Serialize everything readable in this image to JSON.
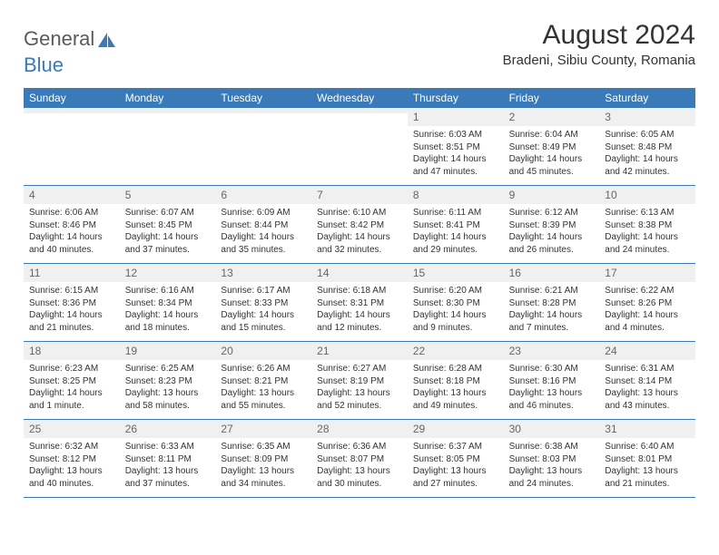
{
  "logo": {
    "general": "General",
    "blue": "Blue"
  },
  "colors": {
    "header_bg": "#3a7ab8",
    "header_text": "#ffffff",
    "daynum_bg": "#f0f0f0",
    "daynum_text": "#666666",
    "body_text": "#333333",
    "rule": "#3a7ab8",
    "page_bg": "#ffffff"
  },
  "title": "August 2024",
  "location": "Bradeni, Sibiu County, Romania",
  "day_labels": [
    "Sunday",
    "Monday",
    "Tuesday",
    "Wednesday",
    "Thursday",
    "Friday",
    "Saturday"
  ],
  "weeks": [
    [
      {
        "n": "",
        "sr": "",
        "ss": "",
        "dl": ""
      },
      {
        "n": "",
        "sr": "",
        "ss": "",
        "dl": ""
      },
      {
        "n": "",
        "sr": "",
        "ss": "",
        "dl": ""
      },
      {
        "n": "",
        "sr": "",
        "ss": "",
        "dl": ""
      },
      {
        "n": "1",
        "sr": "Sunrise: 6:03 AM",
        "ss": "Sunset: 8:51 PM",
        "dl": "Daylight: 14 hours and 47 minutes."
      },
      {
        "n": "2",
        "sr": "Sunrise: 6:04 AM",
        "ss": "Sunset: 8:49 PM",
        "dl": "Daylight: 14 hours and 45 minutes."
      },
      {
        "n": "3",
        "sr": "Sunrise: 6:05 AM",
        "ss": "Sunset: 8:48 PM",
        "dl": "Daylight: 14 hours and 42 minutes."
      }
    ],
    [
      {
        "n": "4",
        "sr": "Sunrise: 6:06 AM",
        "ss": "Sunset: 8:46 PM",
        "dl": "Daylight: 14 hours and 40 minutes."
      },
      {
        "n": "5",
        "sr": "Sunrise: 6:07 AM",
        "ss": "Sunset: 8:45 PM",
        "dl": "Daylight: 14 hours and 37 minutes."
      },
      {
        "n": "6",
        "sr": "Sunrise: 6:09 AM",
        "ss": "Sunset: 8:44 PM",
        "dl": "Daylight: 14 hours and 35 minutes."
      },
      {
        "n": "7",
        "sr": "Sunrise: 6:10 AM",
        "ss": "Sunset: 8:42 PM",
        "dl": "Daylight: 14 hours and 32 minutes."
      },
      {
        "n": "8",
        "sr": "Sunrise: 6:11 AM",
        "ss": "Sunset: 8:41 PM",
        "dl": "Daylight: 14 hours and 29 minutes."
      },
      {
        "n": "9",
        "sr": "Sunrise: 6:12 AM",
        "ss": "Sunset: 8:39 PM",
        "dl": "Daylight: 14 hours and 26 minutes."
      },
      {
        "n": "10",
        "sr": "Sunrise: 6:13 AM",
        "ss": "Sunset: 8:38 PM",
        "dl": "Daylight: 14 hours and 24 minutes."
      }
    ],
    [
      {
        "n": "11",
        "sr": "Sunrise: 6:15 AM",
        "ss": "Sunset: 8:36 PM",
        "dl": "Daylight: 14 hours and 21 minutes."
      },
      {
        "n": "12",
        "sr": "Sunrise: 6:16 AM",
        "ss": "Sunset: 8:34 PM",
        "dl": "Daylight: 14 hours and 18 minutes."
      },
      {
        "n": "13",
        "sr": "Sunrise: 6:17 AM",
        "ss": "Sunset: 8:33 PM",
        "dl": "Daylight: 14 hours and 15 minutes."
      },
      {
        "n": "14",
        "sr": "Sunrise: 6:18 AM",
        "ss": "Sunset: 8:31 PM",
        "dl": "Daylight: 14 hours and 12 minutes."
      },
      {
        "n": "15",
        "sr": "Sunrise: 6:20 AM",
        "ss": "Sunset: 8:30 PM",
        "dl": "Daylight: 14 hours and 9 minutes."
      },
      {
        "n": "16",
        "sr": "Sunrise: 6:21 AM",
        "ss": "Sunset: 8:28 PM",
        "dl": "Daylight: 14 hours and 7 minutes."
      },
      {
        "n": "17",
        "sr": "Sunrise: 6:22 AM",
        "ss": "Sunset: 8:26 PM",
        "dl": "Daylight: 14 hours and 4 minutes."
      }
    ],
    [
      {
        "n": "18",
        "sr": "Sunrise: 6:23 AM",
        "ss": "Sunset: 8:25 PM",
        "dl": "Daylight: 14 hours and 1 minute."
      },
      {
        "n": "19",
        "sr": "Sunrise: 6:25 AM",
        "ss": "Sunset: 8:23 PM",
        "dl": "Daylight: 13 hours and 58 minutes."
      },
      {
        "n": "20",
        "sr": "Sunrise: 6:26 AM",
        "ss": "Sunset: 8:21 PM",
        "dl": "Daylight: 13 hours and 55 minutes."
      },
      {
        "n": "21",
        "sr": "Sunrise: 6:27 AM",
        "ss": "Sunset: 8:19 PM",
        "dl": "Daylight: 13 hours and 52 minutes."
      },
      {
        "n": "22",
        "sr": "Sunrise: 6:28 AM",
        "ss": "Sunset: 8:18 PM",
        "dl": "Daylight: 13 hours and 49 minutes."
      },
      {
        "n": "23",
        "sr": "Sunrise: 6:30 AM",
        "ss": "Sunset: 8:16 PM",
        "dl": "Daylight: 13 hours and 46 minutes."
      },
      {
        "n": "24",
        "sr": "Sunrise: 6:31 AM",
        "ss": "Sunset: 8:14 PM",
        "dl": "Daylight: 13 hours and 43 minutes."
      }
    ],
    [
      {
        "n": "25",
        "sr": "Sunrise: 6:32 AM",
        "ss": "Sunset: 8:12 PM",
        "dl": "Daylight: 13 hours and 40 minutes."
      },
      {
        "n": "26",
        "sr": "Sunrise: 6:33 AM",
        "ss": "Sunset: 8:11 PM",
        "dl": "Daylight: 13 hours and 37 minutes."
      },
      {
        "n": "27",
        "sr": "Sunrise: 6:35 AM",
        "ss": "Sunset: 8:09 PM",
        "dl": "Daylight: 13 hours and 34 minutes."
      },
      {
        "n": "28",
        "sr": "Sunrise: 6:36 AM",
        "ss": "Sunset: 8:07 PM",
        "dl": "Daylight: 13 hours and 30 minutes."
      },
      {
        "n": "29",
        "sr": "Sunrise: 6:37 AM",
        "ss": "Sunset: 8:05 PM",
        "dl": "Daylight: 13 hours and 27 minutes."
      },
      {
        "n": "30",
        "sr": "Sunrise: 6:38 AM",
        "ss": "Sunset: 8:03 PM",
        "dl": "Daylight: 13 hours and 24 minutes."
      },
      {
        "n": "31",
        "sr": "Sunrise: 6:40 AM",
        "ss": "Sunset: 8:01 PM",
        "dl": "Daylight: 13 hours and 21 minutes."
      }
    ]
  ]
}
